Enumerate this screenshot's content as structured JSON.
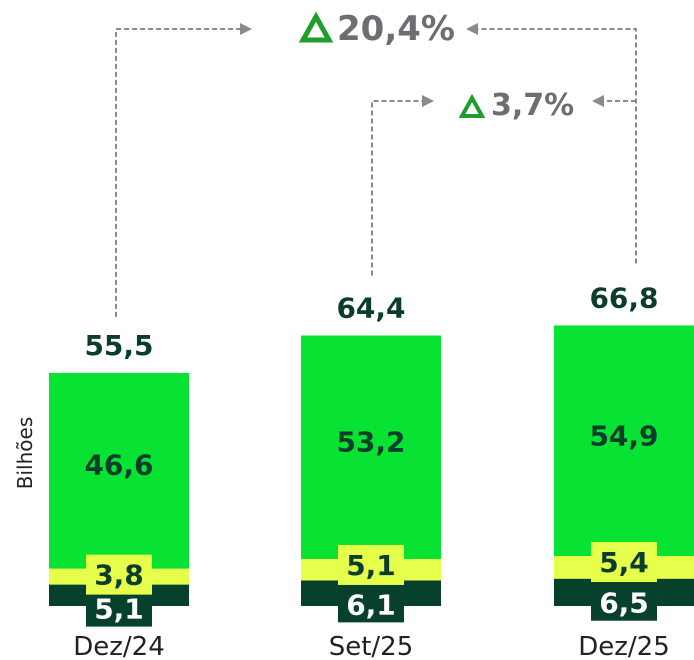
{
  "colors": {
    "bottom": "#07412b",
    "middle": "#e6ff4a",
    "top": "#08e232",
    "total_text": "#0b3d2c",
    "delta_text": "#6d6e71",
    "delta_triangle": "#1f9e2e",
    "arrow": "#8a8a8a"
  },
  "chart_data": {
    "type": "bar",
    "stacked": true,
    "ylabel": "Bilhões",
    "categories": [
      "Dez/24",
      "Set/25",
      "Dez/25"
    ],
    "series": [
      {
        "values": [
          5.1,
          6.1,
          6.5
        ],
        "labels": [
          "5,1",
          "6,1",
          "6,5"
        ]
      },
      {
        "values": [
          3.8,
          5.1,
          5.4
        ],
        "labels": [
          "3,8",
          "5,1",
          "5,4"
        ]
      },
      {
        "values": [
          46.6,
          53.2,
          54.9
        ],
        "labels": [
          "46,6",
          "53,2",
          "54,9"
        ]
      }
    ],
    "totals": [
      55.5,
      64.4,
      66.8
    ],
    "total_labels": [
      "55,5",
      "64,4",
      "66,8"
    ],
    "comparisons": [
      {
        "from": "Dez/24",
        "to": "Dez/25",
        "label": "20,4%"
      },
      {
        "from": "Set/25",
        "to": "Dez/25",
        "label": "3,7%"
      }
    ]
  }
}
